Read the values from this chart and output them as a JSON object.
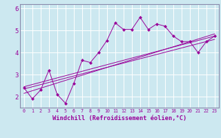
{
  "xlabel": "Windchill (Refroidissement éolien,°C)",
  "background_color": "#cce8f0",
  "line_color": "#990099",
  "spine_color": "#8888aa",
  "xlim": [
    -0.5,
    23.5
  ],
  "ylim": [
    1.5,
    6.2
  ],
  "yticks": [
    2,
    3,
    4,
    5,
    6
  ],
  "xticks": [
    0,
    1,
    2,
    3,
    4,
    5,
    6,
    7,
    8,
    9,
    10,
    11,
    12,
    13,
    14,
    15,
    16,
    17,
    18,
    19,
    20,
    21,
    22,
    23
  ],
  "series_main": {
    "x": [
      0,
      1,
      2,
      3,
      4,
      5,
      6,
      7,
      8,
      9,
      10,
      11,
      12,
      13,
      14,
      15,
      16,
      17,
      18,
      19,
      20,
      21,
      22,
      23
    ],
    "y": [
      2.4,
      1.9,
      2.3,
      3.2,
      2.1,
      1.7,
      2.6,
      3.65,
      3.55,
      4.0,
      4.55,
      5.35,
      5.05,
      5.05,
      5.6,
      5.05,
      5.3,
      5.2,
      4.75,
      4.5,
      4.5,
      4.0,
      4.5,
      4.75
    ]
  },
  "trend_lines": [
    {
      "x": [
        0,
        23
      ],
      "y": [
        2.15,
        4.85
      ]
    },
    {
      "x": [
        0,
        23
      ],
      "y": [
        2.35,
        4.6
      ]
    },
    {
      "x": [
        0,
        23
      ],
      "y": [
        2.45,
        4.75
      ]
    }
  ]
}
